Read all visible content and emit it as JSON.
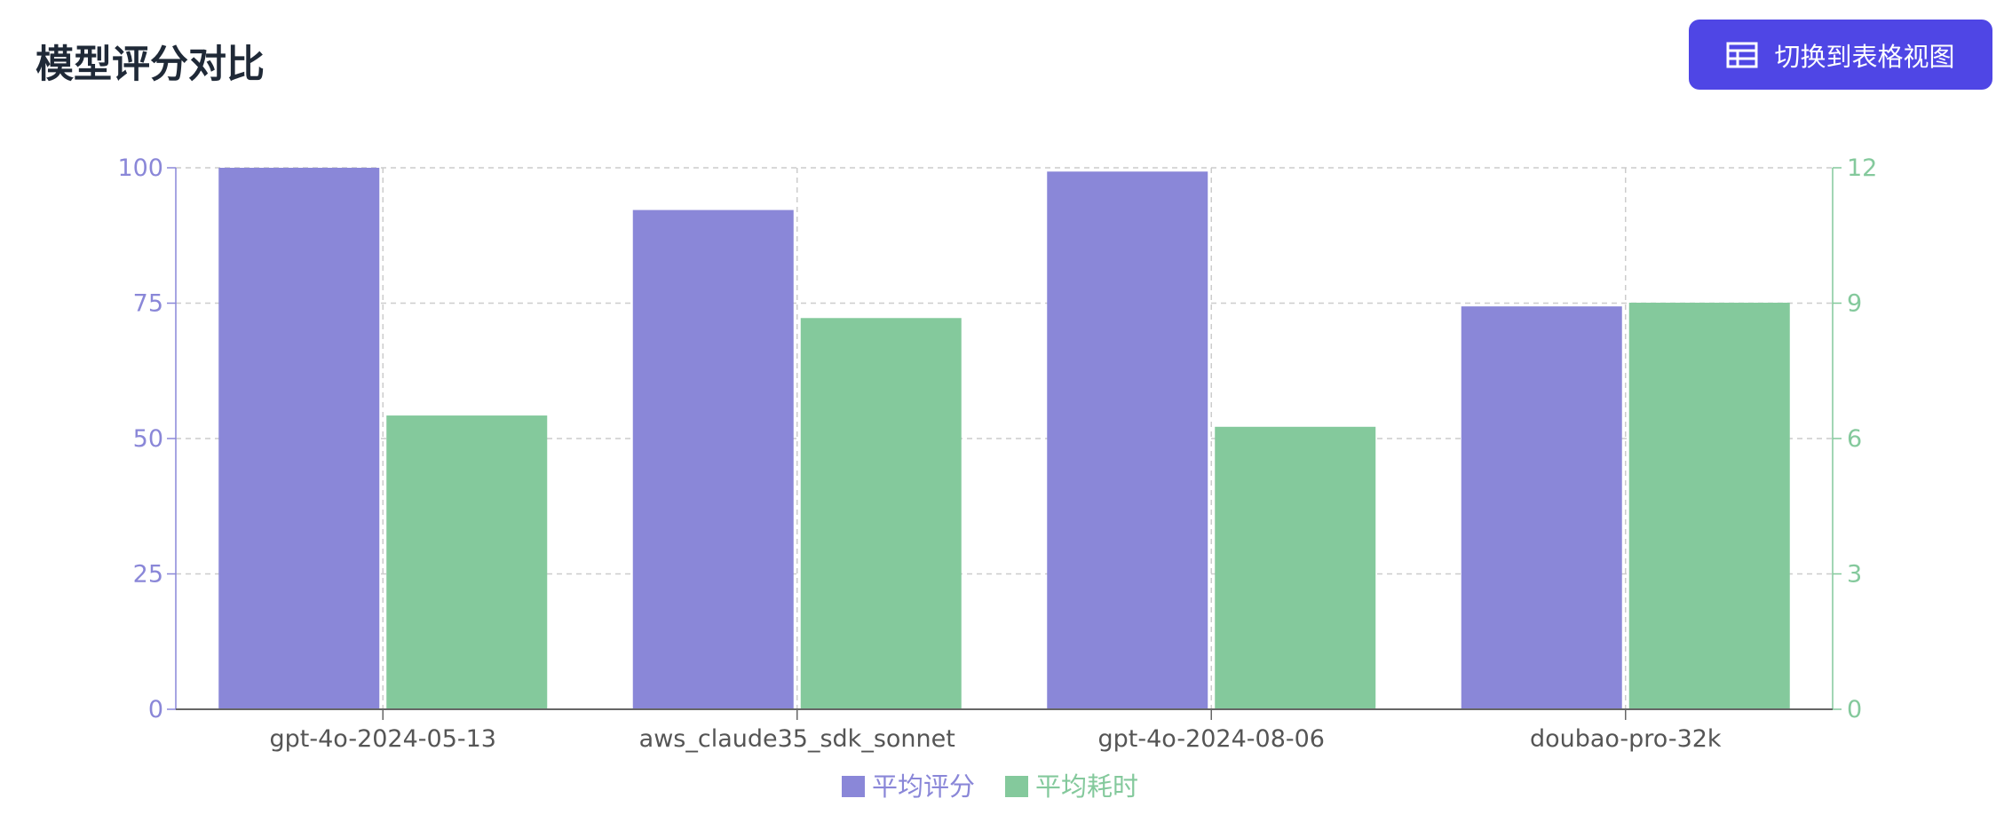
{
  "header": {
    "title": "模型评分对比",
    "toggle_button_label": "切换到表格视图",
    "toggle_button_icon": "table-icon"
  },
  "colors": {
    "score": "#8a87d8",
    "time": "#84c99c",
    "button": "#4f46e5"
  },
  "chart_data": {
    "type": "bar",
    "categories": [
      "gpt-4o-2024-05-13",
      "aws_claude35_sdk_sonnet",
      "gpt-4o-2024-08-06",
      "doubao-pro-32k"
    ],
    "series": [
      {
        "name": "平均评分",
        "axis": "left",
        "values": [
          100,
          92.2,
          99.3,
          74.4
        ]
      },
      {
        "name": "平均耗时",
        "axis": "right",
        "values": [
          6.51,
          8.67,
          6.26,
          9.01
        ]
      }
    ],
    "y_left": {
      "range": [
        0,
        100
      ],
      "ticks": [
        "0",
        "25",
        "50",
        "75",
        "100"
      ]
    },
    "y_right": {
      "range": [
        0,
        12
      ],
      "ticks": [
        "0",
        "3",
        "6",
        "9",
        "12"
      ]
    },
    "grid": true,
    "legend": "bottom"
  }
}
